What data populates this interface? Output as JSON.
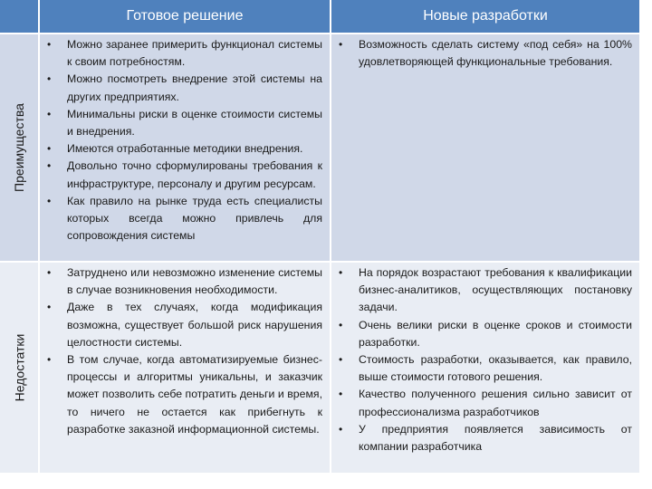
{
  "header": {
    "col1": "Готовое решение",
    "col2": "Новые разработки"
  },
  "rows": [
    {
      "label": "Преимущества",
      "ready": [
        "Можно заранее примерить функционал системы к своим потребностям.",
        "Можно посмотреть внедрение этой системы на других предприятиях.",
        "Минимальны риски в оценке стоимости системы и внедрения.",
        "Имеются отработанные методики внедрения.",
        "Довольно точно сформулированы требования к инфраструктуре, персоналу и другим ресурсам.",
        "Как правило на рынке труда есть специалисты которых всегда можно привлечь для сопровождения системы"
      ],
      "new": [
        "Возможность сделать систему «под себя» на 100% удовлетворяющей функциональные требования."
      ]
    },
    {
      "label": "Недостатки",
      "ready": [
        "Затруднено или невозможно изменение системы в случае возникновения необходимости.",
        "Даже в тех случаях, когда модификация возможна, существует большой риск нарушения целостности системы.",
        "В том случае, когда автоматизируемые бизнес-процессы и алгоритмы уникальны, и заказчик может позволить себе потратить деньги и время, то ничего не остается как прибегнуть к разработке заказной информационной системы."
      ],
      "new": [
        "На порядок возрастают требования к квалификации бизнес-аналитиков, осуществляющих постановку задачи.",
        "Очень велики риски в оценке сроков и стоимости разработки.",
        "Стоимость разработки, оказывается, как правило, выше стоимости готового решения.",
        "Качество полученного решения сильно зависит от профессионализма разработчиков",
        "У предприятия появляется зависимость от компании разработчика"
      ]
    }
  ],
  "colors": {
    "header": "#4f81bd",
    "row_odd": "#d0d8e8",
    "row_even": "#e9edf4"
  },
  "bullet": "•"
}
